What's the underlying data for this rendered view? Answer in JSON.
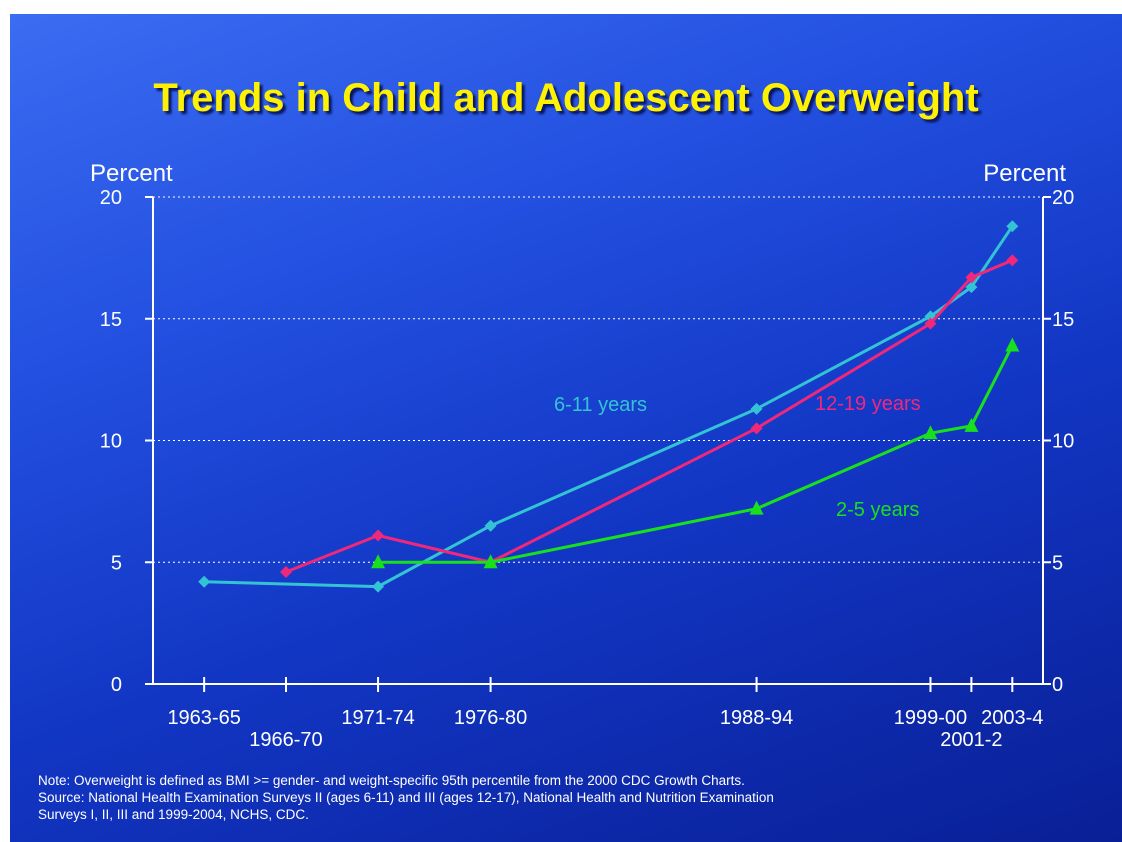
{
  "chart_data": {
    "type": "line",
    "title": "Trends in Child and Adolescent Overweight",
    "ylabel_left": "Percent",
    "ylabel_right": "Percent",
    "ylim": [
      0,
      20
    ],
    "y_ticks": [
      0,
      5,
      10,
      15,
      20
    ],
    "grid": true,
    "x_ticks": [
      {
        "label": "1963-65",
        "year": 1964
      },
      {
        "label": "1966-70",
        "year": 1968
      },
      {
        "label": "1971-74",
        "year": 1972.5
      },
      {
        "label": "1976-80",
        "year": 1978
      },
      {
        "label": "1988-94",
        "year": 1991
      },
      {
        "label": "1999-00",
        "year": 1999.5
      },
      {
        "label": "2001-2",
        "year": 2001.5
      },
      {
        "label": "2003-4",
        "year": 2003.5
      }
    ],
    "series": [
      {
        "name": "6-11 years",
        "color": "#33c3d4",
        "marker": "diamond",
        "points": [
          [
            "1963-65",
            4.2
          ],
          [
            "1971-74",
            4.0
          ],
          [
            "1976-80",
            6.5
          ],
          [
            "1988-94",
            11.3
          ],
          [
            "1999-00",
            15.1
          ],
          [
            "2001-2",
            16.3
          ],
          [
            "2003-4",
            18.8
          ]
        ]
      },
      {
        "name": "12-19 years",
        "color": "#f0287a",
        "marker": "diamond",
        "points": [
          [
            "1966-70",
            4.6
          ],
          [
            "1971-74",
            6.1
          ],
          [
            "1976-80",
            5.0
          ],
          [
            "1988-94",
            10.5
          ],
          [
            "1999-00",
            14.8
          ],
          [
            "2001-2",
            16.7
          ],
          [
            "2003-4",
            17.4
          ]
        ]
      },
      {
        "name": "2-5 years",
        "color": "#19e01c",
        "marker": "triangle",
        "points": [
          [
            "1971-74",
            5.0
          ],
          [
            "1976-80",
            5.0
          ],
          [
            "1988-94",
            7.2
          ],
          [
            "1999-00",
            10.3
          ],
          [
            "2001-2",
            10.6
          ],
          [
            "2003-4",
            13.9
          ]
        ]
      }
    ]
  },
  "notes": {
    "line1": "Note: Overweight is defined as BMI >= gender- and weight-specific 95th percentile from the 2000 CDC Growth Charts.",
    "line2": "Source: National Health Examination Surveys II (ages 6-11) and III (ages 12-17), National Health and Nutrition Examination",
    "line3": "Surveys I, II, III and 1999-2004, NCHS, CDC."
  }
}
